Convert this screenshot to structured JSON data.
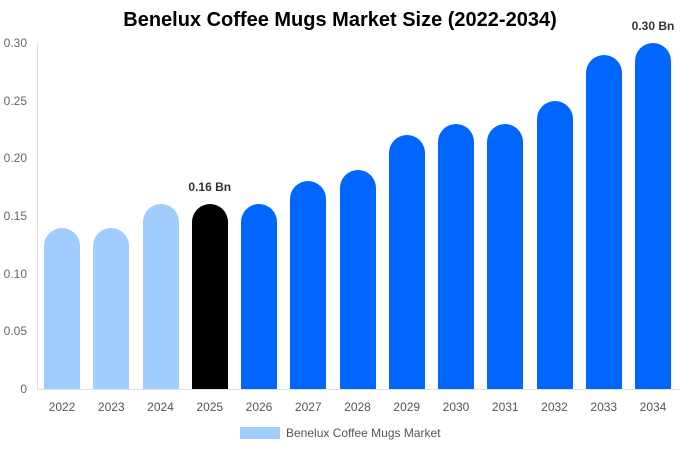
{
  "chart_data": {
    "type": "bar",
    "title": "Benelux Coffee Mugs Market Size (2022-2034)",
    "categories": [
      "2022",
      "2023",
      "2024",
      "2025",
      "2026",
      "2027",
      "2028",
      "2029",
      "2030",
      "2031",
      "2032",
      "2033",
      "2034"
    ],
    "series": [
      {
        "name": "Benelux Coffee Mugs Market",
        "values": [
          0.14,
          0.14,
          0.16,
          0.16,
          0.16,
          0.18,
          0.19,
          0.22,
          0.23,
          0.23,
          0.25,
          0.29,
          0.3
        ]
      }
    ],
    "yticks": [
      "0",
      "0.05",
      "0.10",
      "0.15",
      "0.20",
      "0.25",
      "0.30"
    ],
    "ylim": [
      0,
      0.3
    ],
    "xlabel": "",
    "ylabel": "",
    "annotations": [
      {
        "category": "2025",
        "text": "0.16 Bn"
      },
      {
        "category": "2034",
        "text": "0.30 Bn"
      }
    ],
    "colors": {
      "historic": "#a0cdfd",
      "current": "#000000",
      "forecast": "#0066ff"
    },
    "grid": false,
    "legend_position": "bottom"
  }
}
